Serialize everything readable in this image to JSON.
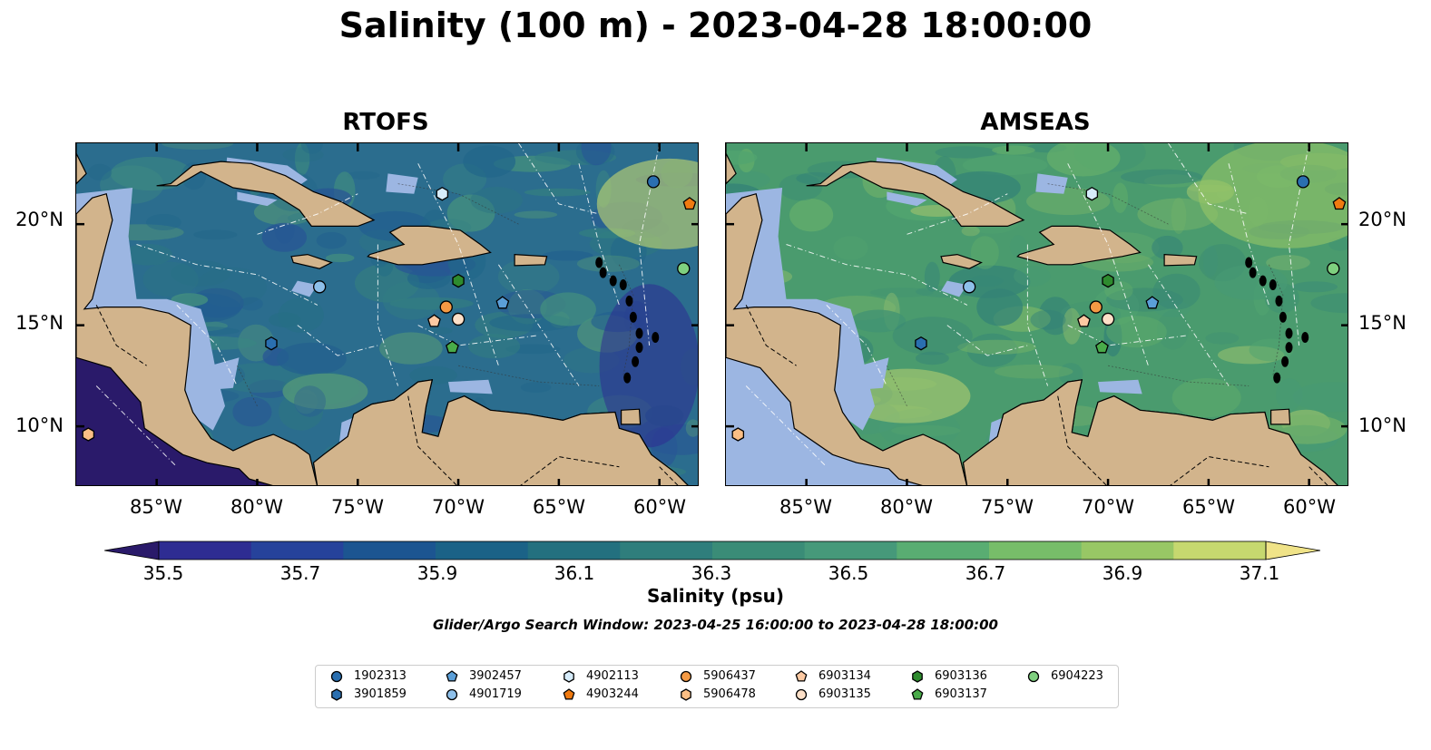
{
  "figure": {
    "title": "Salinity (100 m) - 2023-04-28 18:00:00",
    "search_window": "Glider/Argo Search Window: 2023-04-25 16:00:00 to 2023-04-28 18:00:00"
  },
  "panels": [
    {
      "title": "RTOFS",
      "field_tint": "#2b6d8e"
    },
    {
      "title": "AMSEAS",
      "field_tint": "#4a9b6e"
    }
  ],
  "axes": {
    "x_ticks": [
      "85°W",
      "80°W",
      "75°W",
      "70°W",
      "65°W",
      "60°W"
    ],
    "y_ticks": [
      "20°N",
      "15°N",
      "10°N"
    ],
    "lon_range": [
      -89,
      -58
    ],
    "lat_range": [
      7,
      24
    ],
    "x_tick_values": [
      -85,
      -80,
      -75,
      -70,
      -65,
      -60
    ],
    "y_tick_values": [
      20,
      15,
      10
    ]
  },
  "colorbar": {
    "label": "Salinity (psu)",
    "ticks": [
      "35.5",
      "35.7",
      "35.9",
      "36.1",
      "36.3",
      "36.5",
      "36.7",
      "36.9",
      "37.1"
    ],
    "colors": [
      "#2a1a6a",
      "#2e2c92",
      "#26429b",
      "#1c5591",
      "#1b6287",
      "#23707f",
      "#2f7e7c",
      "#3a8c77",
      "#46997a",
      "#59ad72",
      "#77bd69",
      "#98c765",
      "#c6d86f",
      "#f0e388"
    ],
    "extend": "both",
    "range": [
      35.5,
      37.1
    ]
  },
  "colors": {
    "land": "#d2b48c",
    "shelf": "#9cb6e2"
  },
  "legend": {
    "items": [
      {
        "id": "1902313",
        "marker": "circle",
        "color": "#2a6fb0"
      },
      {
        "id": "3901859",
        "marker": "hexagon",
        "color": "#2a6fb0"
      },
      {
        "id": "3902457",
        "marker": "pentagon",
        "color": "#5b9fd8"
      },
      {
        "id": "4901719",
        "marker": "circle",
        "color": "#8ec0ea"
      },
      {
        "id": "4902113",
        "marker": "hexagon",
        "color": "#d6ecfb"
      },
      {
        "id": "4903244",
        "marker": "pentagon",
        "color": "#f07a10"
      },
      {
        "id": "5906437",
        "marker": "circle",
        "color": "#f59a44"
      },
      {
        "id": "5906478",
        "marker": "hexagon",
        "color": "#fbbf85"
      },
      {
        "id": "6903134",
        "marker": "pentagon",
        "color": "#fcc9a2"
      },
      {
        "id": "6903135",
        "marker": "circle",
        "color": "#fde0c8"
      },
      {
        "id": "6903136",
        "marker": "hexagon",
        "color": "#2e8b2e"
      },
      {
        "id": "6903137",
        "marker": "pentagon",
        "color": "#49ab49"
      },
      {
        "id": "6904223",
        "marker": "circle",
        "color": "#7fd07f"
      }
    ]
  },
  "floats": [
    {
      "id": "1902313",
      "lon": -60.3,
      "lat": 22.1
    },
    {
      "id": "3901859",
      "lon": -79.3,
      "lat": 14.1
    },
    {
      "id": "3902457",
      "lon": -67.8,
      "lat": 16.1
    },
    {
      "id": "4901719",
      "lon": -76.9,
      "lat": 16.9
    },
    {
      "id": "4902113",
      "lon": -70.8,
      "lat": 21.5
    },
    {
      "id": "4903244",
      "lon": -58.5,
      "lat": 21.0
    },
    {
      "id": "5906437",
      "lon": -70.6,
      "lat": 15.9
    },
    {
      "id": "5906478",
      "lon": -88.4,
      "lat": 9.6
    },
    {
      "id": "6903134",
      "lon": -71.2,
      "lat": 15.2
    },
    {
      "id": "6903135",
      "lon": -70.0,
      "lat": 15.3
    },
    {
      "id": "6903136",
      "lon": -70.0,
      "lat": 17.2
    },
    {
      "id": "6903137",
      "lon": -70.3,
      "lat": 13.9
    },
    {
      "id": "6904223",
      "lon": -58.8,
      "lat": 17.8
    }
  ]
}
